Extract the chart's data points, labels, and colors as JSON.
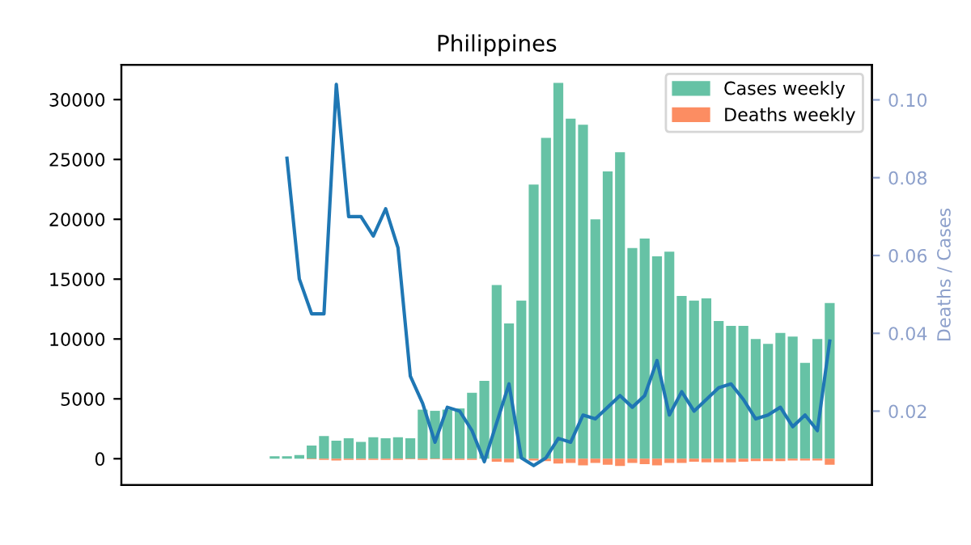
{
  "chart_data": {
    "type": "bar",
    "title": "Philippines",
    "y2label": "Deaths / Cases",
    "categories": [
      null,
      null,
      null,
      null,
      null,
      null,
      null,
      null,
      null,
      null,
      null,
      null,
      null,
      null,
      null,
      null,
      null,
      null,
      null,
      null,
      null,
      null,
      null,
      null,
      null,
      null,
      null,
      null,
      null,
      null,
      null,
      null,
      null,
      null,
      null,
      null,
      null,
      null,
      null,
      null,
      null,
      null,
      null,
      null,
      null,
      null,
      null,
      null,
      null,
      null,
      null,
      null,
      null,
      null,
      null
    ],
    "series": [
      {
        "name": "Cases weekly",
        "color": "#66c2a5",
        "values": [
          0,
          0,
          0,
          0,
          0,
          0,
          0,
          0,
          0,
          200,
          200,
          300,
          1100,
          1900,
          1500,
          1700,
          1400,
          1800,
          1700,
          1800,
          1700,
          4100,
          4000,
          4100,
          4200,
          5500,
          6500,
          14500,
          11300,
          13200,
          22900,
          26800,
          31400,
          28400,
          27900,
          20000,
          24000,
          25600,
          17600,
          18400,
          16900,
          17300,
          13600,
          13200,
          13400,
          11500,
          11100,
          11100,
          10000,
          9600,
          10500,
          10200,
          8000,
          10000,
          13000
        ]
      },
      {
        "name": "Deaths weekly",
        "color": "#fc8d62",
        "values": [
          0,
          0,
          0,
          0,
          0,
          0,
          0,
          0,
          0,
          0,
          0,
          0,
          -50,
          -100,
          -150,
          -100,
          -100,
          -100,
          -100,
          -100,
          -50,
          -100,
          -50,
          -100,
          -100,
          -100,
          null,
          -250,
          -300,
          null,
          -150,
          -200,
          -400,
          -350,
          -550,
          -350,
          -500,
          -600,
          -350,
          -450,
          -550,
          -350,
          -350,
          -250,
          -300,
          -300,
          -300,
          -250,
          -200,
          -200,
          -200,
          -150,
          -150,
          -150,
          -500
        ]
      },
      {
        "type": "line",
        "axis": "y2",
        "color": "#1f77b4",
        "values": [
          null,
          null,
          null,
          null,
          null,
          null,
          null,
          null,
          null,
          null,
          0.085,
          0.054,
          0.045,
          0.045,
          0.104,
          0.07,
          0.07,
          0.065,
          0.072,
          0.062,
          0.029,
          0.022,
          0.012,
          0.021,
          0.02,
          0.015,
          0.007,
          0.017,
          0.027,
          0.008,
          0.006,
          0.008,
          0.013,
          0.012,
          0.019,
          0.018,
          0.021,
          0.024,
          0.021,
          0.024,
          0.033,
          0.019,
          0.025,
          0.02,
          0.023,
          0.026,
          0.027,
          0.023,
          0.018,
          0.019,
          0.021,
          0.016,
          0.019,
          0.015,
          0.038
        ]
      }
    ],
    "ylim": [
      -2200,
      32900
    ],
    "yticks": [
      0,
      5000,
      10000,
      15000,
      20000,
      25000,
      30000
    ],
    "y2lim": [
      0.001,
      0.109
    ],
    "y2ticks": [
      {
        "value": 0.02,
        "label": "0.02"
      },
      {
        "value": 0.04,
        "label": "0.04"
      },
      {
        "value": 0.06,
        "label": "0.06"
      },
      {
        "value": 0.08,
        "label": "0.08"
      },
      {
        "value": 0.1,
        "label": "0.10"
      }
    ],
    "legend": "top right",
    "tick_labels": "y",
    "grid": false
  }
}
